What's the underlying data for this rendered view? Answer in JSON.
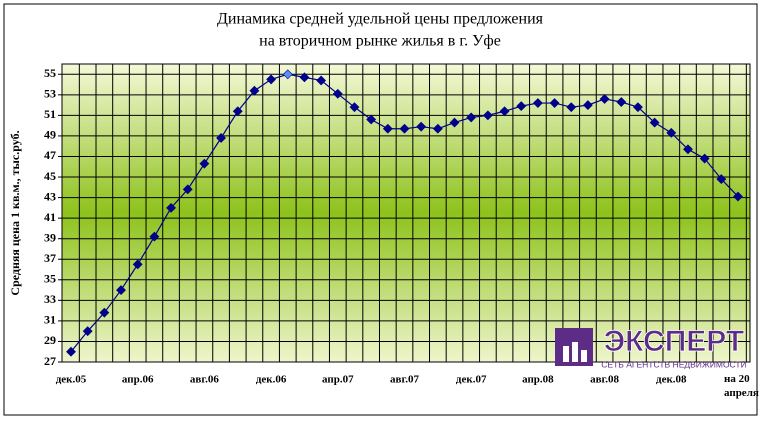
{
  "chart_data": {
    "type": "line",
    "title": [
      "Динамика средней удельной цены предложения",
      "на вторичном рынке жилья в г. Уфе"
    ],
    "y_label": "Средняя цена 1 кв.м., тыс.руб.",
    "categories": [
      "дек.05",
      null,
      null,
      null,
      "апр.06",
      null,
      null,
      null,
      "авг.06",
      null,
      null,
      null,
      "дек.06",
      null,
      null,
      null,
      "апр.07",
      null,
      null,
      null,
      "авг.07",
      null,
      null,
      null,
      "дек.07",
      null,
      null,
      null,
      "апр.08",
      null,
      null,
      null,
      "авг.08",
      null,
      null,
      null,
      "дек.08",
      null,
      null,
      null,
      "на 20 апреля"
    ],
    "series": [
      {
        "color": "#00008b",
        "highlight_color": "#5b8ff0",
        "highlight_point": 13,
        "values": [
          28,
          30,
          31.8,
          34,
          36.5,
          39.2,
          42,
          43.8,
          46.3,
          48.8,
          51.4,
          53.4,
          54.5,
          55,
          54.7,
          54.4,
          53.1,
          51.8,
          50.6,
          49.7,
          49.7,
          49.9,
          49.7,
          50.3,
          50.8,
          51.0,
          51.4,
          51.9,
          52.2,
          52.2,
          51.8,
          52.0,
          52.6,
          52.3,
          51.8,
          50.3,
          49.3,
          47.7,
          46.8,
          44.8,
          43.1
        ]
      }
    ],
    "ylim": [
      27,
      56
    ],
    "yticks": [
      27,
      29,
      31,
      33,
      35,
      37,
      39,
      41,
      43,
      45,
      47,
      49,
      51,
      53,
      55
    ],
    "grid": true,
    "logo": {
      "name": "ЭКСПЕРТ",
      "tagline": "СЕТЬ АГЕНТСТВ НЕДВИЖИМОСТИ"
    }
  }
}
